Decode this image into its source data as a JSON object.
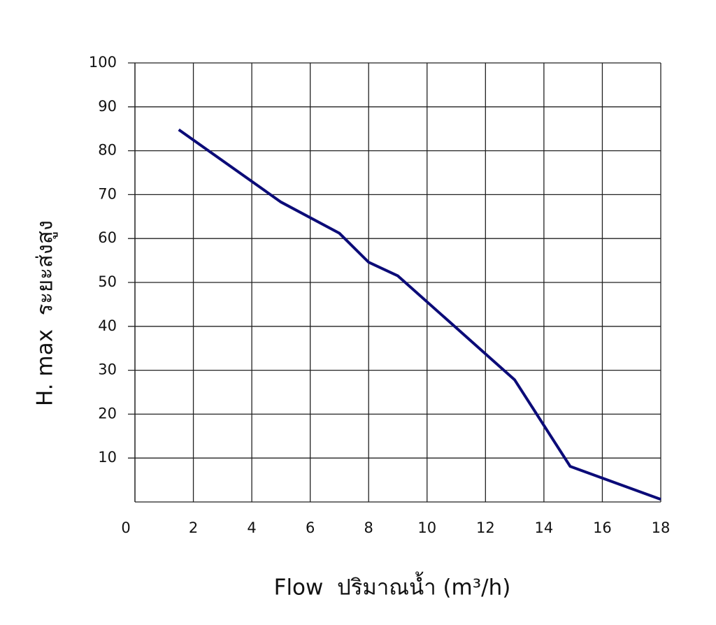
{
  "chart_data": {
    "type": "line",
    "x_label": "Flow  ปริมาณน้ำ (m³/h)",
    "y_label": "H. max  ระยะส่งสูง",
    "x": [
      1.5,
      5,
      7,
      8,
      9,
      13,
      14.9,
      18
    ],
    "values": [
      84.8,
      68.3,
      61.2,
      54.6,
      51.5,
      27.8,
      8.1,
      0.6
    ],
    "color": "#0b0b78",
    "xlim": [
      0,
      18
    ],
    "xticks": [
      0,
      2,
      4,
      6,
      8,
      10,
      12,
      14,
      16,
      18
    ],
    "ylim": [
      0,
      100
    ],
    "yticks": [
      10,
      20,
      30,
      40,
      50,
      60,
      70,
      80,
      90,
      100
    ],
    "grid": true
  }
}
